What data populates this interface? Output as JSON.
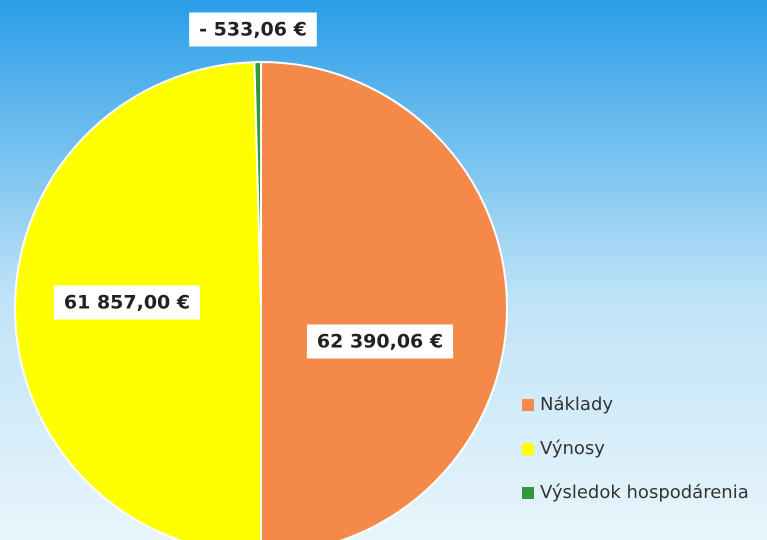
{
  "chart_data": {
    "type": "pie",
    "categories": [
      "Náklady",
      "Výnosy",
      "Výsledok hospodárenia"
    ],
    "values": [
      62390.06,
      61857.0,
      -533.06
    ],
    "value_labels": [
      "62 390,06 €",
      "61 857,00 €",
      "- 533,06 €"
    ],
    "colors": [
      "#f5894a",
      "#ffff00",
      "#2e9a3a"
    ],
    "legend": "bottom-right"
  }
}
